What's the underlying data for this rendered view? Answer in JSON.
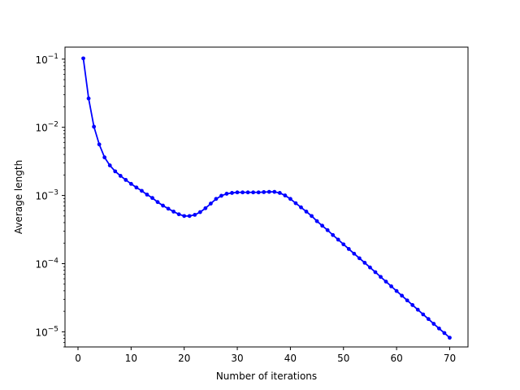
{
  "chart_data": {
    "type": "line",
    "title": "",
    "xlabel": "Number of iterations",
    "ylabel": "Average length",
    "xlim": [
      -2.45,
      73.45
    ],
    "ylim": [
      6e-06,
      0.15
    ],
    "yscale": "log",
    "grid": false,
    "color": "#0000ff",
    "x_ticks": [
      0,
      10,
      20,
      30,
      40,
      50,
      60,
      70
    ],
    "y_ticks": [
      {
        "value": 1e-05,
        "base": "10",
        "exp": "−5"
      },
      {
        "value": 0.0001,
        "base": "10",
        "exp": "−4"
      },
      {
        "value": 0.001,
        "base": "10",
        "exp": "−3"
      },
      {
        "value": 0.01,
        "base": "10",
        "exp": "−2"
      },
      {
        "value": 0.1,
        "base": "10",
        "exp": "−1"
      }
    ],
    "series": [
      {
        "x": [
          1,
          2,
          3,
          4,
          5,
          6,
          7,
          8,
          9,
          10,
          11,
          12,
          13,
          14,
          15,
          16,
          17,
          18,
          19,
          20,
          21,
          22,
          23,
          24,
          25,
          26,
          27,
          28,
          29,
          30,
          31,
          32,
          33,
          34,
          35,
          36,
          37,
          38,
          39,
          40,
          41,
          42,
          43,
          44,
          45,
          46,
          47,
          48,
          49,
          50,
          51,
          52,
          53,
          54,
          55,
          56,
          57,
          58,
          59,
          60,
          61,
          62,
          63,
          64,
          65,
          66,
          67,
          68,
          69,
          70
        ],
        "values": [
          0.1026,
          0.0265,
          0.0102,
          0.00561,
          0.00362,
          0.00276,
          0.00226,
          0.00194,
          0.00169,
          0.00148,
          0.00131,
          0.00117,
          0.00103,
          0.00092,
          0.0008,
          0.00071,
          0.00064,
          0.00058,
          0.00053,
          0.0005,
          0.0005,
          0.00052,
          0.00057,
          0.00065,
          0.00076,
          0.00089,
          0.00099,
          0.00106,
          0.00109,
          0.00111,
          0.00111,
          0.00111,
          0.00111,
          0.00111,
          0.00112,
          0.00113,
          0.00113,
          0.00109,
          0.001,
          0.00089,
          0.00077,
          0.00067,
          0.00058,
          0.0005,
          0.00042,
          0.00036,
          0.00031,
          0.000263,
          0.000225,
          0.000192,
          0.000164,
          0.00014,
          0.00012,
          0.000103,
          8.8e-05,
          7.5e-05,
          6.4e-05,
          5.45e-05,
          4.65e-05,
          3.97e-05,
          3.39e-05,
          2.89e-05,
          2.47e-05,
          2.11e-05,
          1.8e-05,
          1.54e-05,
          1.31e-05,
          1.12e-05,
          9.6e-06,
          8.2e-06
        ]
      }
    ]
  }
}
